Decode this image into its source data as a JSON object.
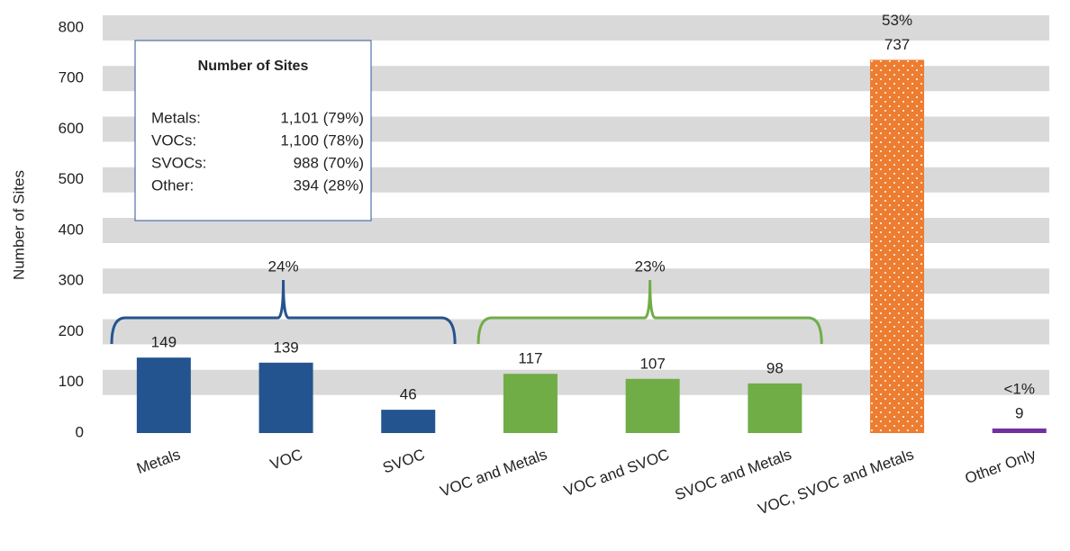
{
  "chart_data": {
    "type": "bar",
    "y_label": "Number of Sites",
    "categories": [
      "Metals",
      "VOC",
      "SVOC",
      "VOC and Metals",
      "VOC and SVOC",
      "SVOC and Metals",
      "VOC, SVOC and Metals",
      "Other Only"
    ],
    "values": [
      149,
      139,
      46,
      117,
      107,
      98,
      737,
      9
    ],
    "colors": [
      "#24548f",
      "#24548f",
      "#24548f",
      "#70ad47",
      "#70ad47",
      "#70ad47",
      "#ed7d31",
      "#7030a0"
    ],
    "share_labels": [
      null,
      null,
      null,
      null,
      null,
      null,
      "53%",
      "<1%"
    ],
    "groups": [
      {
        "label": "24%",
        "members": [
          "Metals",
          "VOC",
          "SVOC"
        ],
        "color": "#24548f"
      },
      {
        "label": "23%",
        "members": [
          "VOC and Metals",
          "VOC and SVOC",
          "SVOC and Metals"
        ],
        "color": "#70ad47"
      }
    ],
    "ylim": [
      0,
      800
    ],
    "yticks": [
      0,
      100,
      200,
      300,
      400,
      500,
      600,
      700,
      800
    ],
    "grid": true,
    "legend_box": {
      "title": "Number of Sites",
      "rows": [
        {
          "label": "Metals:",
          "value": "1,101 (79%)"
        },
        {
          "label": "VOCs:",
          "value": "1,100 (78%)"
        },
        {
          "label": "SVOCs:",
          "value": "988 (70%)"
        },
        {
          "label": "Other:",
          "value": "394 (28%)"
        }
      ]
    }
  }
}
